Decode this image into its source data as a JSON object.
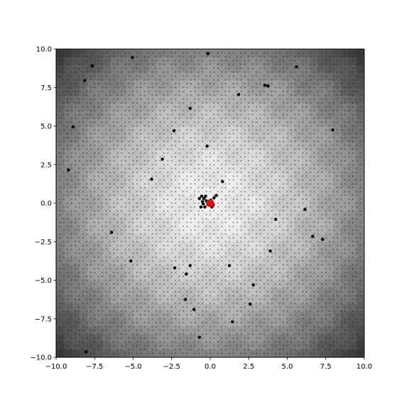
{
  "chart_data": {
    "type": "scatter",
    "title": "",
    "xlabel": "",
    "ylabel": "",
    "xlim": [
      -10,
      10
    ],
    "ylim": [
      -10,
      10
    ],
    "x_ticks": [
      -10.0,
      -7.5,
      -5.0,
      -2.5,
      0.0,
      2.5,
      5.0,
      7.5,
      10.0
    ],
    "x_tick_labels": [
      "−10.0",
      "−7.5",
      "−5.0",
      "−2.5",
      "0.0",
      "2.5",
      "5.0",
      "7.5",
      "10.0"
    ],
    "y_ticks": [
      -10.0,
      -7.5,
      -5.0,
      -2.5,
      0.0,
      2.5,
      5.0,
      7.5,
      10.0
    ],
    "y_tick_labels": [
      "−10.0",
      "−7.5",
      "−5.0",
      "−2.5",
      "0.0",
      "2.5",
      "5.0",
      "7.5",
      "10.0"
    ],
    "grid": false,
    "legend": "none",
    "background": {
      "kind": "heatmap",
      "description_colormap": "grayscale",
      "center_value_color": "#eeeeee",
      "edge_value_color": "#2a2a2a",
      "cell_period": [
        0.5,
        0.5
      ]
    },
    "series": [
      {
        "marker": "dot",
        "color": "#000000",
        "points": [
          [
            -0.55,
            0.45
          ],
          [
            -0.4,
            0.3
          ],
          [
            -0.3,
            0.45
          ],
          [
            -0.5,
            0.1
          ],
          [
            -0.35,
            -0.25
          ],
          [
            -0.6,
            -0.25
          ],
          [
            -0.15,
            -0.1
          ],
          [
            0.05,
            0.2
          ],
          [
            0.25,
            0.35
          ],
          [
            0.2,
            -0.1
          ],
          [
            -0.25,
            0.15
          ],
          [
            0.4,
            0.5
          ],
          [
            -0.7,
            0.3
          ],
          [
            -0.45,
            -0.05
          ],
          [
            0.1,
            -0.25
          ],
          [
            -0.2,
            3.7
          ],
          [
            -3.1,
            2.85
          ],
          [
            -3.8,
            1.55
          ],
          [
            -9.2,
            2.15
          ],
          [
            -8.9,
            4.95
          ],
          [
            -2.35,
            4.7
          ],
          [
            -1.3,
            6.15
          ],
          [
            -5.05,
            9.45
          ],
          [
            -0.15,
            9.7
          ],
          [
            -7.65,
            8.9
          ],
          [
            -8.15,
            7.95
          ],
          [
            3.55,
            7.65
          ],
          [
            3.75,
            7.6
          ],
          [
            5.6,
            8.85
          ],
          [
            1.85,
            7.05
          ],
          [
            7.95,
            4.75
          ],
          [
            6.15,
            -0.4
          ],
          [
            4.25,
            -1.05
          ],
          [
            3.9,
            -3.1
          ],
          [
            6.65,
            -2.15
          ],
          [
            7.3,
            -2.35
          ],
          [
            1.25,
            -4.05
          ],
          [
            2.8,
            -5.3
          ],
          [
            2.6,
            -6.55
          ],
          [
            1.45,
            -7.7
          ],
          [
            -1.3,
            -4.05
          ],
          [
            -2.3,
            -4.2
          ],
          [
            -1.55,
            -4.6
          ],
          [
            -5.15,
            -3.75
          ],
          [
            -1.6,
            -6.25
          ],
          [
            -1.05,
            -6.9
          ],
          [
            -8.05,
            -9.65
          ],
          [
            -0.7,
            -8.7
          ],
          [
            0.8,
            1.4
          ],
          [
            -6.4,
            -1.9
          ]
        ]
      },
      {
        "marker": "dot",
        "color": "#e01010",
        "points": [
          [
            0.0,
            0.0
          ]
        ]
      }
    ]
  }
}
